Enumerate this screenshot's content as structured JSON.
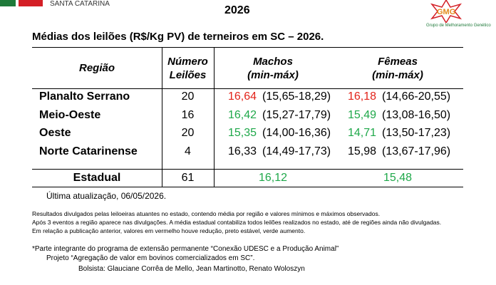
{
  "header": {
    "org": "SANTA CATARINA",
    "year": "2026",
    "logo_text": "GMG",
    "logo_caption": "Grupo de Melhoramento Genético"
  },
  "subtitle": "Médias dos leilões (R$/Kg PV) de terneiros em SC – 2026.",
  "table": {
    "columns": [
      "Região",
      [
        "Número",
        "Leilões"
      ],
      [
        "Machos",
        "(min-máx)"
      ],
      [
        "Fêmeas",
        "(min-máx)"
      ]
    ],
    "rows": [
      {
        "region": "Planalto Serrano",
        "count": "20",
        "machos": "16,64",
        "machos_range": "(15,65-18,29)",
        "machos_color": "#e2231a",
        "femeas": "16,18",
        "femeas_range": "(14,66-20,55)",
        "femeas_color": "#e2231a"
      },
      {
        "region": "Meio-Oeste",
        "count": "16",
        "machos": "16,42",
        "machos_range": "(15,27-17,79)",
        "machos_color": "#1fa84a",
        "femeas": "15,49",
        "femeas_range": "(13,08-16,50)",
        "femeas_color": "#1fa84a"
      },
      {
        "region": "Oeste",
        "count": "20",
        "machos": "15,35",
        "machos_range": "(14,00-16,36)",
        "machos_color": "#1fa84a",
        "femeas": "14,71",
        "femeas_range": "(13,50-17,23)",
        "femeas_color": "#1fa84a"
      },
      {
        "region": "Norte Catarinense",
        "count": "4",
        "machos": "16,33",
        "machos_range": "(14,49-17,73)",
        "machos_color": "#000000",
        "femeas": "15,98",
        "femeas_range": "(13,67-17,96)",
        "femeas_color": "#000000"
      }
    ],
    "total": {
      "region": "Estadual",
      "count": "61",
      "machos": "16,12",
      "femeas": "15,48",
      "color": "#1fa84a"
    }
  },
  "updated": "Última atualização, 06/05/2026.",
  "notes": [
    "Resultados divulgados pelas leiloeiras atuantes no estado, contendo média por região e valores mínimos e máximos observados.",
    "Após 3 eventos a região aparece nas divulgações. A média estadual contabiliza todos leilões realizados no estado, até de regiões ainda não divulgadas.",
    "Em relação a publicação anterior, valores em vermelho houve redução, preto estável, verde aumento."
  ],
  "footnotes": [
    "*Parte integrante do programa de extensão permanente “Conexão UDESC e a Produção Animal”",
    "Projeto “Agregação de valor em bovinos comercializados em SC”.",
    "Bolsista: Glauciane Corrêa de Mello, Jean Martinotto, Renato Woloszyn"
  ]
}
